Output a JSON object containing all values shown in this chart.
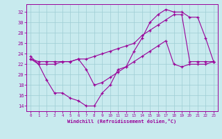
{
  "xlabel": "Windchill (Refroidissement éolien,°C)",
  "xlim": [
    -0.5,
    23.5
  ],
  "ylim": [
    13.0,
    33.5
  ],
  "xticks": [
    0,
    1,
    2,
    3,
    4,
    5,
    6,
    7,
    8,
    9,
    10,
    11,
    12,
    13,
    14,
    15,
    16,
    17,
    18,
    19,
    20,
    21,
    22,
    23
  ],
  "yticks": [
    14,
    16,
    18,
    20,
    22,
    24,
    26,
    28,
    30,
    32
  ],
  "bg_color": "#c8eaee",
  "grid_color": "#9ecdd4",
  "line_color": "#990099",
  "curve1_x": [
    0,
    1,
    2,
    3,
    4,
    5,
    6,
    7,
    8,
    9,
    10,
    11,
    12,
    13,
    14,
    15,
    16,
    17,
    18,
    19,
    20,
    21,
    22,
    23
  ],
  "curve1_y": [
    23.5,
    22.0,
    19.0,
    16.5,
    16.5,
    15.5,
    15.0,
    14.0,
    14.0,
    16.5,
    18.0,
    21.0,
    21.5,
    24.5,
    27.0,
    30.0,
    31.5,
    32.5,
    32.0,
    32.0,
    31.0,
    31.0,
    27.0,
    22.5
  ],
  "curve2_x": [
    0,
    1,
    2,
    3,
    4,
    5,
    6,
    7,
    8,
    9,
    10,
    11,
    12,
    13,
    14,
    15,
    16,
    17,
    18,
    19,
    20,
    21,
    22,
    23
  ],
  "curve2_y": [
    23.0,
    22.5,
    22.5,
    22.5,
    22.5,
    22.5,
    23.0,
    23.0,
    23.5,
    24.0,
    24.5,
    25.0,
    25.5,
    26.0,
    27.5,
    28.5,
    29.5,
    30.5,
    31.5,
    31.5,
    22.5,
    22.5,
    22.5,
    22.5
  ],
  "curve3_x": [
    0,
    1,
    2,
    3,
    4,
    5,
    6,
    7,
    8,
    9,
    10,
    11,
    12,
    13,
    14,
    15,
    16,
    17,
    18,
    19,
    20,
    21,
    22,
    23
  ],
  "curve3_y": [
    23.0,
    22.0,
    22.0,
    22.0,
    22.5,
    22.5,
    23.0,
    21.0,
    18.0,
    18.5,
    19.5,
    20.5,
    21.5,
    22.5,
    23.5,
    24.5,
    25.5,
    26.5,
    22.0,
    21.5,
    22.0,
    22.0,
    22.0,
    22.5
  ]
}
